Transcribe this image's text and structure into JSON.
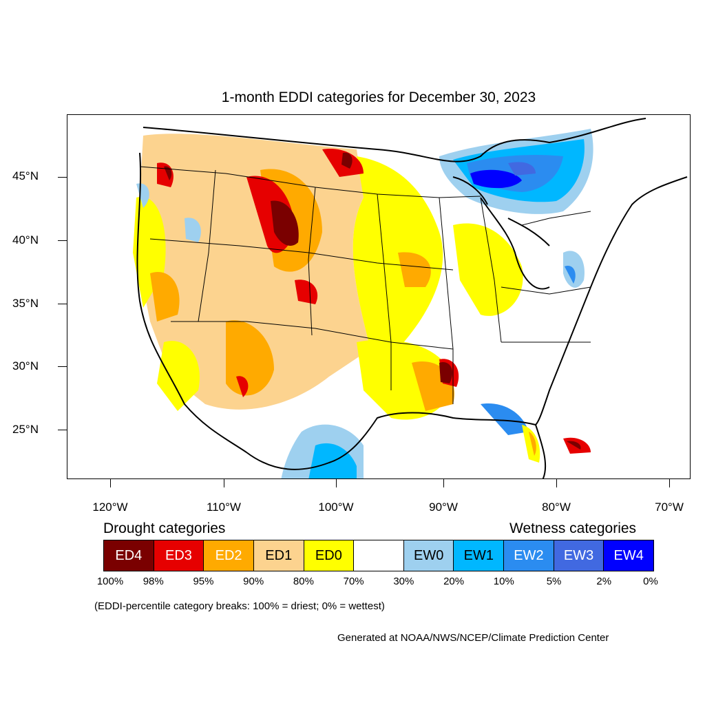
{
  "title": "1-month EDDI categories for December 30, 2023",
  "axes": {
    "lat_labels": [
      "45°N",
      "40°N",
      "35°N",
      "30°N",
      "25°N"
    ],
    "lon_labels": [
      "120°W",
      "110°W",
      "100°W",
      "90°W",
      "80°W",
      "70°W"
    ]
  },
  "legend": {
    "drought_heading": "Drought categories",
    "wetness_heading": "Wetness categories",
    "categories": [
      {
        "label": "ED4",
        "color": "#7a0000",
        "text_color": "#ffffff"
      },
      {
        "label": "ED3",
        "color": "#e60000",
        "text_color": "#ffffff"
      },
      {
        "label": "ED2",
        "color": "#ffaa00",
        "text_color": "#ffffff"
      },
      {
        "label": "ED1",
        "color": "#fcd38f",
        "text_color": "#000000"
      },
      {
        "label": "ED0",
        "color": "#ffff00",
        "text_color": "#000000"
      },
      {
        "label": "",
        "color": "#ffffff",
        "text_color": "#000000"
      },
      {
        "label": "EW0",
        "color": "#9ed0ef",
        "text_color": "#000000"
      },
      {
        "label": "EW1",
        "color": "#00b7ff",
        "text_color": "#000000"
      },
      {
        "label": "EW2",
        "color": "#2b8cf0",
        "text_color": "#ffffff"
      },
      {
        "label": "EW3",
        "color": "#4169e1",
        "text_color": "#ffffff"
      },
      {
        "label": "EW4",
        "color": "#0000ff",
        "text_color": "#ffffff"
      }
    ],
    "breaks": [
      "100%",
      "98%",
      "95%",
      "90%",
      "80%",
      "70%",
      "30%",
      "20%",
      "10%",
      "5%",
      "2%",
      "0%"
    ]
  },
  "note": "(EDDI-percentile category breaks: 100% = driest; 0% = wettest)",
  "credit": "Generated at NOAA/NWS/NCEP/Climate Prediction Center"
}
